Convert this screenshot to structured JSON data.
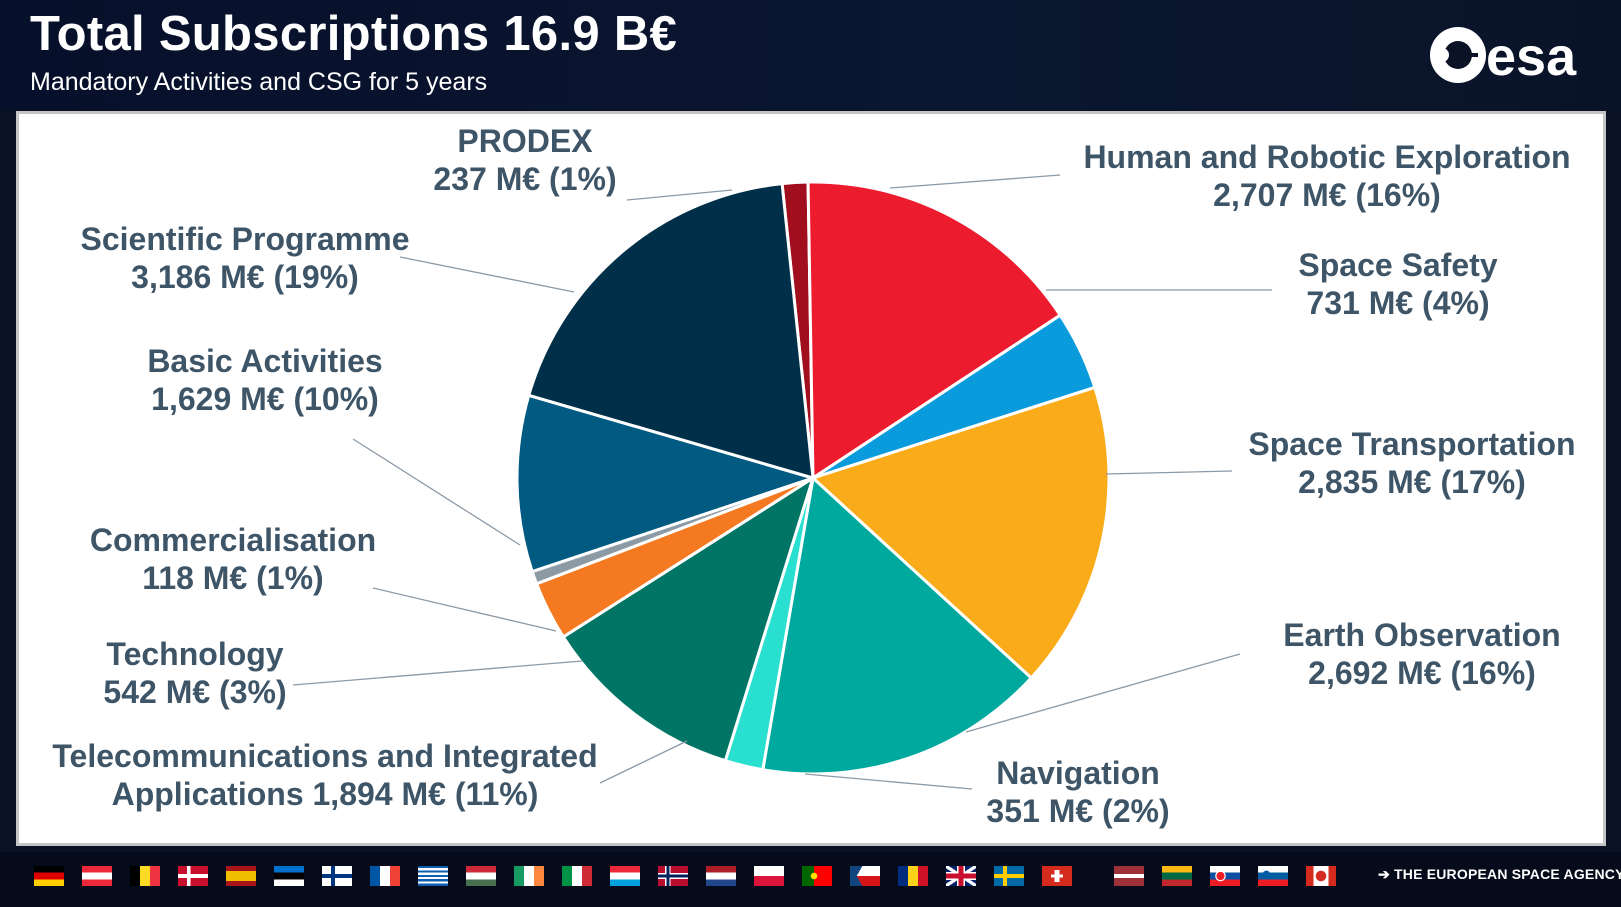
{
  "header": {
    "title": "Total Subscriptions 16.9 B€",
    "subtitle": "Mandatory Activities and CSG for 5 years",
    "logo_text": "esa"
  },
  "chart_data": {
    "type": "pie",
    "title": "Total Subscriptions 16.9 B€",
    "subtitle": "Mandatory Activities and CSG for 5 years",
    "unit": "M€",
    "slices": [
      {
        "name": "PRODEX",
        "value": 237,
        "percent": 1,
        "color": "#a10e1e",
        "label_lines": [
          "PRODEX",
          "237 M€  (1%)"
        ]
      },
      {
        "name": "Human and Robotic Exploration",
        "value": 2707,
        "percent": 16,
        "color": "#ec1c2e",
        "label_lines": [
          "Human and Robotic Exploration",
          "2,707 M€  (16%)"
        ]
      },
      {
        "name": "Space Safety",
        "value": 731,
        "percent": 4,
        "color": "#0a9bdc",
        "label_lines": [
          "Space Safety",
          "731 M€  (4%)"
        ]
      },
      {
        "name": "Space Transportation",
        "value": 2835,
        "percent": 17,
        "color": "#faab1a",
        "label_lines": [
          "Space Transportation",
          "2,835 M€  (17%)"
        ]
      },
      {
        "name": "Earth Observation",
        "value": 2692,
        "percent": 16,
        "color": "#00a99d",
        "label_lines": [
          "Earth Observation",
          "2,692 M€  (16%)"
        ]
      },
      {
        "name": "Navigation",
        "value": 351,
        "percent": 2,
        "color": "#29e0d0",
        "label_lines": [
          "Navigation",
          "351 M€  (2%)"
        ]
      },
      {
        "name": "Telecommunications and Integrated Applications",
        "value": 1894,
        "percent": 11,
        "color": "#007566",
        "label_lines": [
          "Telecommunications and Integrated",
          "Applications 1,894 M€  (11%)"
        ]
      },
      {
        "name": "Technology",
        "value": 542,
        "percent": 3,
        "color": "#f47920",
        "label_lines": [
          "Technology",
          "542 M€  (3%)"
        ]
      },
      {
        "name": "Commercialisation",
        "value": 118,
        "percent": 1,
        "color": "#8c9aa6",
        "label_lines": [
          "Commercialisation",
          "118 M€  (1%)"
        ]
      },
      {
        "name": "Basic Activities",
        "value": 1629,
        "percent": 10,
        "color": "#005a82",
        "label_lines": [
          "Basic Activities",
          "1,629 M€  (10%)"
        ]
      },
      {
        "name": "Scientific Programme",
        "value": 3186,
        "percent": 19,
        "color": "#003049",
        "label_lines": [
          "Scientific Programme",
          "3,186 M€  (19%)"
        ]
      }
    ],
    "start_angle_deg": -6,
    "direction": "clockwise",
    "legend": "none"
  },
  "footer": {
    "tagline": "➔ THE EUROPEAN SPACE AGENCY",
    "flags": [
      "Germany",
      "Austria",
      "Belgium",
      "Denmark",
      "Spain",
      "Estonia",
      "Finland",
      "France",
      "Greece",
      "Hungary",
      "Ireland",
      "Italy",
      "Luxembourg",
      "Norway",
      "Netherlands",
      "Poland",
      "Portugal",
      "Czech Republic",
      "Romania",
      "United Kingdom",
      "Sweden",
      "Switzerland",
      "Latvia",
      "Lithuania",
      "Slovakia",
      "Slovenia",
      "Canada"
    ]
  }
}
